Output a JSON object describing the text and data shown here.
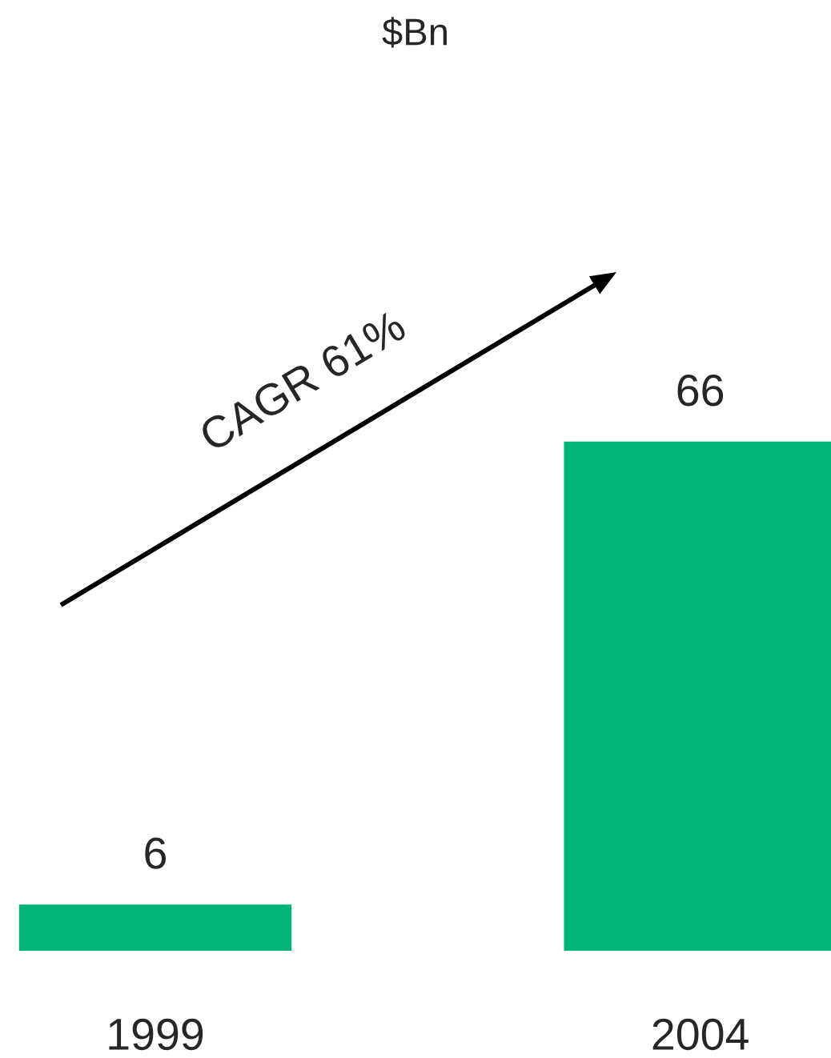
{
  "chart_data": {
    "type": "bar",
    "title": "$Bn",
    "categories": [
      "1999",
      "2004"
    ],
    "values": [
      6,
      66
    ],
    "color": "#00b378",
    "data_labels": true,
    "grid": false,
    "annotations": [
      "CAGR 61%"
    ]
  }
}
